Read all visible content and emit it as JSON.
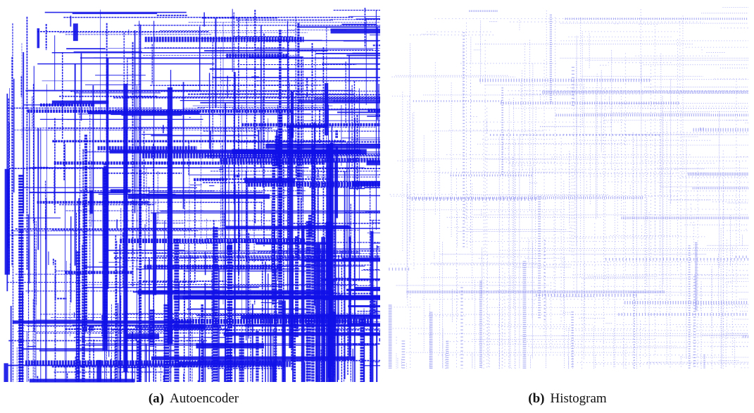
{
  "figures": [
    {
      "label": "(a)",
      "caption": "Autoencoder"
    },
    {
      "label": "(b)",
      "caption": "Histogram"
    }
  ]
}
